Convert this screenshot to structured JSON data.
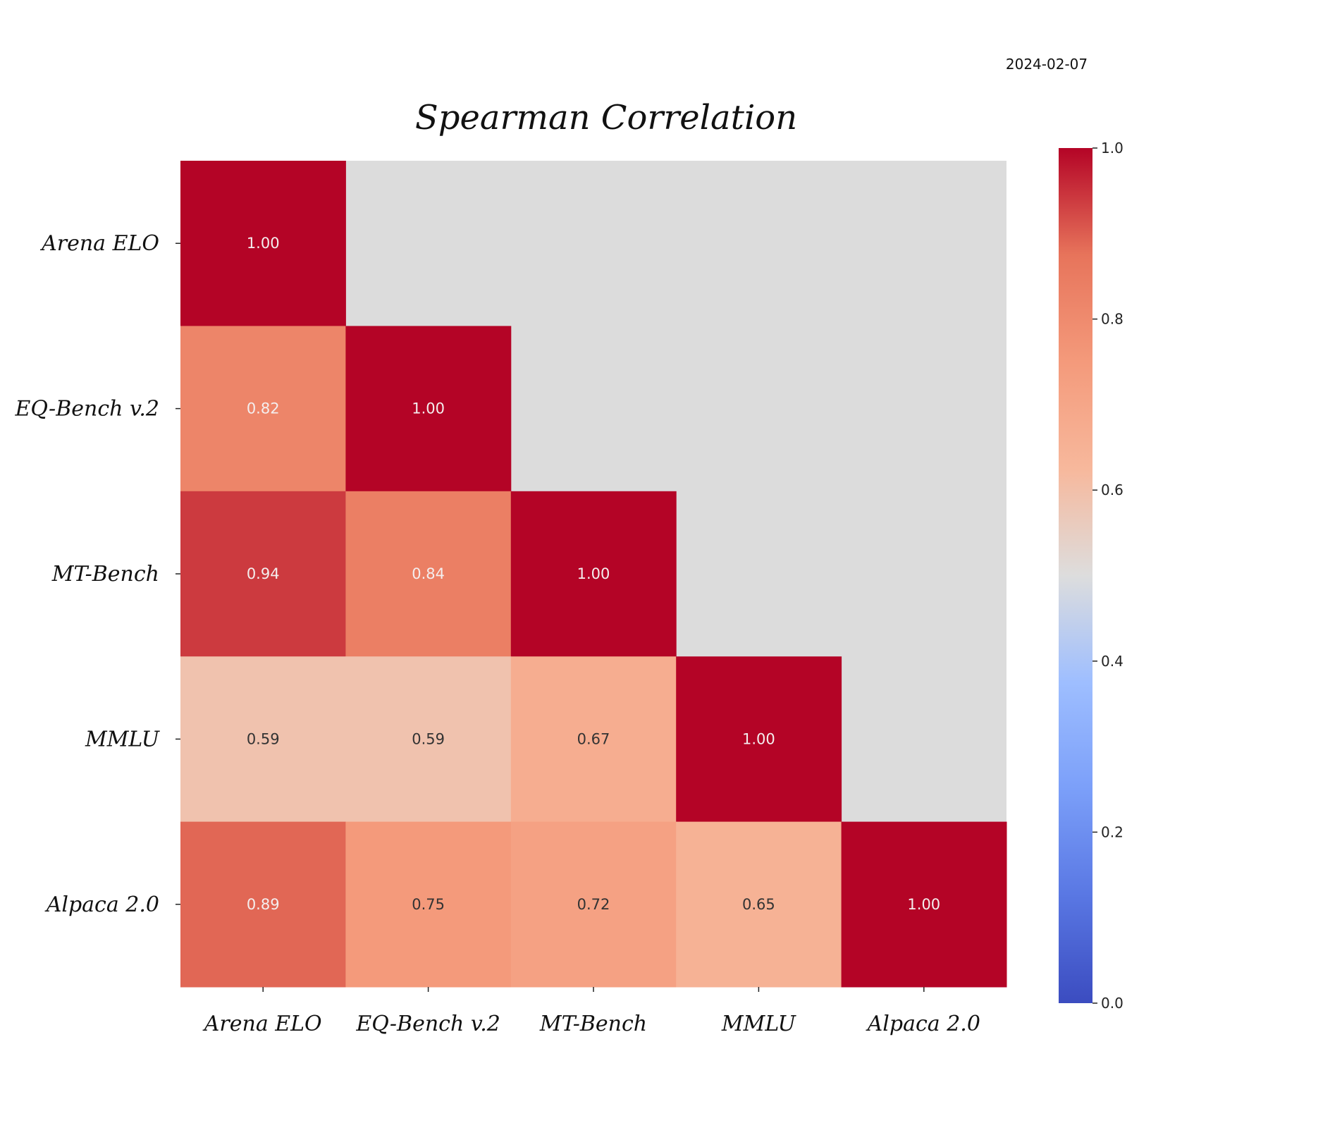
{
  "date": "2024-02-07",
  "chart_data": {
    "type": "heatmap",
    "title": "Spearman Correlation",
    "categories": [
      "Arena ELO",
      "EQ-Bench v.2",
      "MT-Bench",
      "MMLU",
      "Alpaca 2.0"
    ],
    "matrix": [
      [
        1.0,
        null,
        null,
        null,
        null
      ],
      [
        0.82,
        1.0,
        null,
        null,
        null
      ],
      [
        0.94,
        0.84,
        1.0,
        null,
        null
      ],
      [
        0.59,
        0.59,
        0.67,
        1.0,
        null
      ],
      [
        0.89,
        0.75,
        0.72,
        0.65,
        1.0
      ]
    ],
    "value_labels": [
      [
        "1.00",
        "",
        "",
        "",
        ""
      ],
      [
        "0.82",
        "1.00",
        "",
        "",
        ""
      ],
      [
        "0.94",
        "0.84",
        "1.00",
        "",
        ""
      ],
      [
        "0.59",
        "0.59",
        "0.67",
        "1.00",
        ""
      ],
      [
        "0.89",
        "0.75",
        "0.72",
        "0.65",
        "1.00"
      ]
    ],
    "masked": "upper triangle",
    "colormap": "coolwarm",
    "vmin": 0.0,
    "vmax": 1.0,
    "colorbar_ticks": [
      "0.0",
      "0.2",
      "0.4",
      "0.6",
      "0.8",
      "1.0"
    ],
    "colors": {
      "masked": "#dcdcdc",
      "low": "#3b4cc0",
      "mid": "#dddddd",
      "high": "#b40426"
    }
  }
}
